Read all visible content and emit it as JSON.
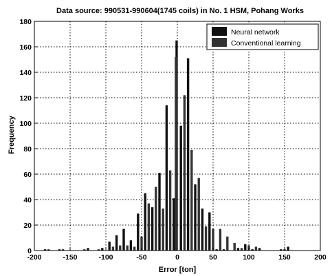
{
  "chart_data": {
    "type": "bar",
    "title": "Data source: 990531-990604(1745 coils) in No. 1 HSM, Pohang Works",
    "xlabel": "Error [ton]",
    "ylabel": "Frequency",
    "xlim": [
      -200,
      200
    ],
    "ylim": [
      0,
      180
    ],
    "xticks": [
      -200,
      -150,
      -100,
      -50,
      0,
      50,
      100,
      150,
      200
    ],
    "yticks": [
      0,
      20,
      40,
      60,
      80,
      100,
      120,
      140,
      160,
      180
    ],
    "grid": "dotted",
    "legend_position": "top-right",
    "series": [
      {
        "name": "Neural network",
        "color": "#111111",
        "points": [
          [
            -185,
            1
          ],
          [
            -165,
            1
          ],
          [
            -125,
            2
          ],
          [
            -105,
            2
          ],
          [
            -95,
            7
          ],
          [
            -85,
            12
          ],
          [
            -75,
            17
          ],
          [
            -65,
            8
          ],
          [
            -55,
            29
          ],
          [
            -45,
            45
          ],
          [
            -35,
            34
          ],
          [
            -25,
            61
          ],
          [
            -15,
            114
          ],
          [
            -5,
            41
          ],
          [
            -1,
            165
          ],
          [
            5,
            98
          ],
          [
            15,
            151
          ],
          [
            25,
            52
          ],
          [
            35,
            33
          ],
          [
            45,
            30
          ],
          [
            55,
            1
          ],
          [
            65,
            1
          ],
          [
            85,
            2
          ],
          [
            95,
            5
          ],
          [
            105,
            1
          ],
          [
            115,
            2
          ],
          [
            145,
            1
          ],
          [
            155,
            3
          ]
        ]
      },
      {
        "name": "Conventional learning",
        "color": "#333333",
        "points": [
          [
            -180,
            1
          ],
          [
            -160,
            1
          ],
          [
            -130,
            1
          ],
          [
            -110,
            1
          ],
          [
            -90,
            3
          ],
          [
            -80,
            4
          ],
          [
            -70,
            4
          ],
          [
            -60,
            3
          ],
          [
            -50,
            11
          ],
          [
            -40,
            37
          ],
          [
            -30,
            50
          ],
          [
            -20,
            33
          ],
          [
            -10,
            63
          ],
          [
            -2,
            152
          ],
          [
            10,
            122
          ],
          [
            20,
            79
          ],
          [
            30,
            57
          ],
          [
            40,
            19
          ],
          [
            50,
            17
          ],
          [
            60,
            17
          ],
          [
            70,
            11
          ],
          [
            80,
            6
          ],
          [
            90,
            2
          ],
          [
            100,
            4
          ],
          [
            110,
            3
          ],
          [
            150,
            1
          ]
        ]
      }
    ]
  }
}
